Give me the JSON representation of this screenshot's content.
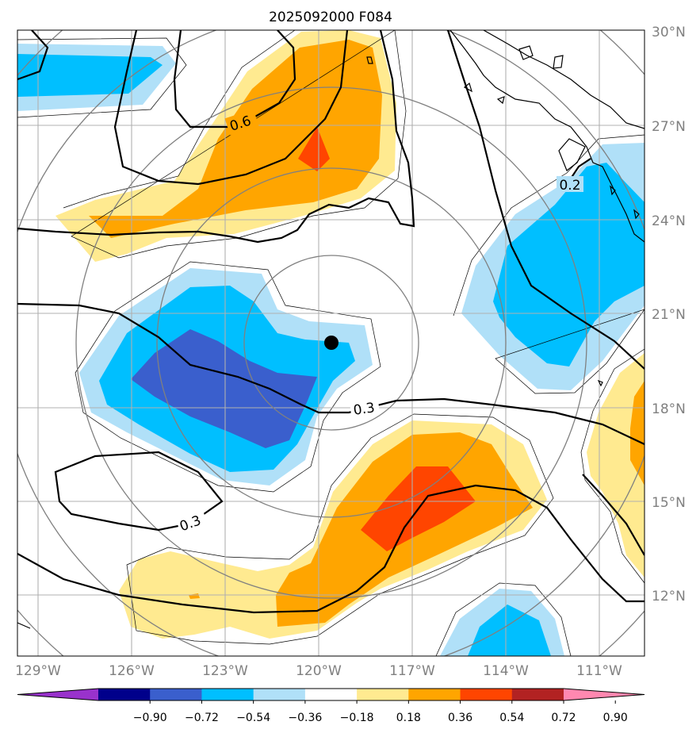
{
  "title": "2025092000 F084",
  "lat_labels": [
    "30°N",
    "27°N",
    "24°N",
    "21°N",
    "18°N",
    "15°N",
    "12°N"
  ],
  "lon_labels": [
    "129°W",
    "126°W",
    "123°W",
    "120°W",
    "117°W",
    "114°W",
    "111°W"
  ],
  "contour_labels": [
    "0.6",
    "0.2",
    "0.3",
    "0.3"
  ],
  "colorbar": {
    "ticks": [
      "−0.90",
      "−0.72",
      "−0.54",
      "−0.36",
      "−0.18",
      "0.18",
      "0.36",
      "0.54",
      "0.72",
      "0.90"
    ],
    "colors": [
      "#9932cc",
      "#00008b",
      "#3a5fcd",
      "#00bfff",
      "#b0e0f8",
      "#ffffff",
      "#ffea90",
      "#ffa500",
      "#ff4500",
      "#b22222",
      "#ff88b0"
    ]
  },
  "map": {
    "extent": {
      "lon_min": -129.6,
      "lon_max": -109.5,
      "lat_min": 10,
      "lat_max": 30
    },
    "storm_center": {
      "lon": -119.7,
      "lat": 20.1
    }
  }
}
